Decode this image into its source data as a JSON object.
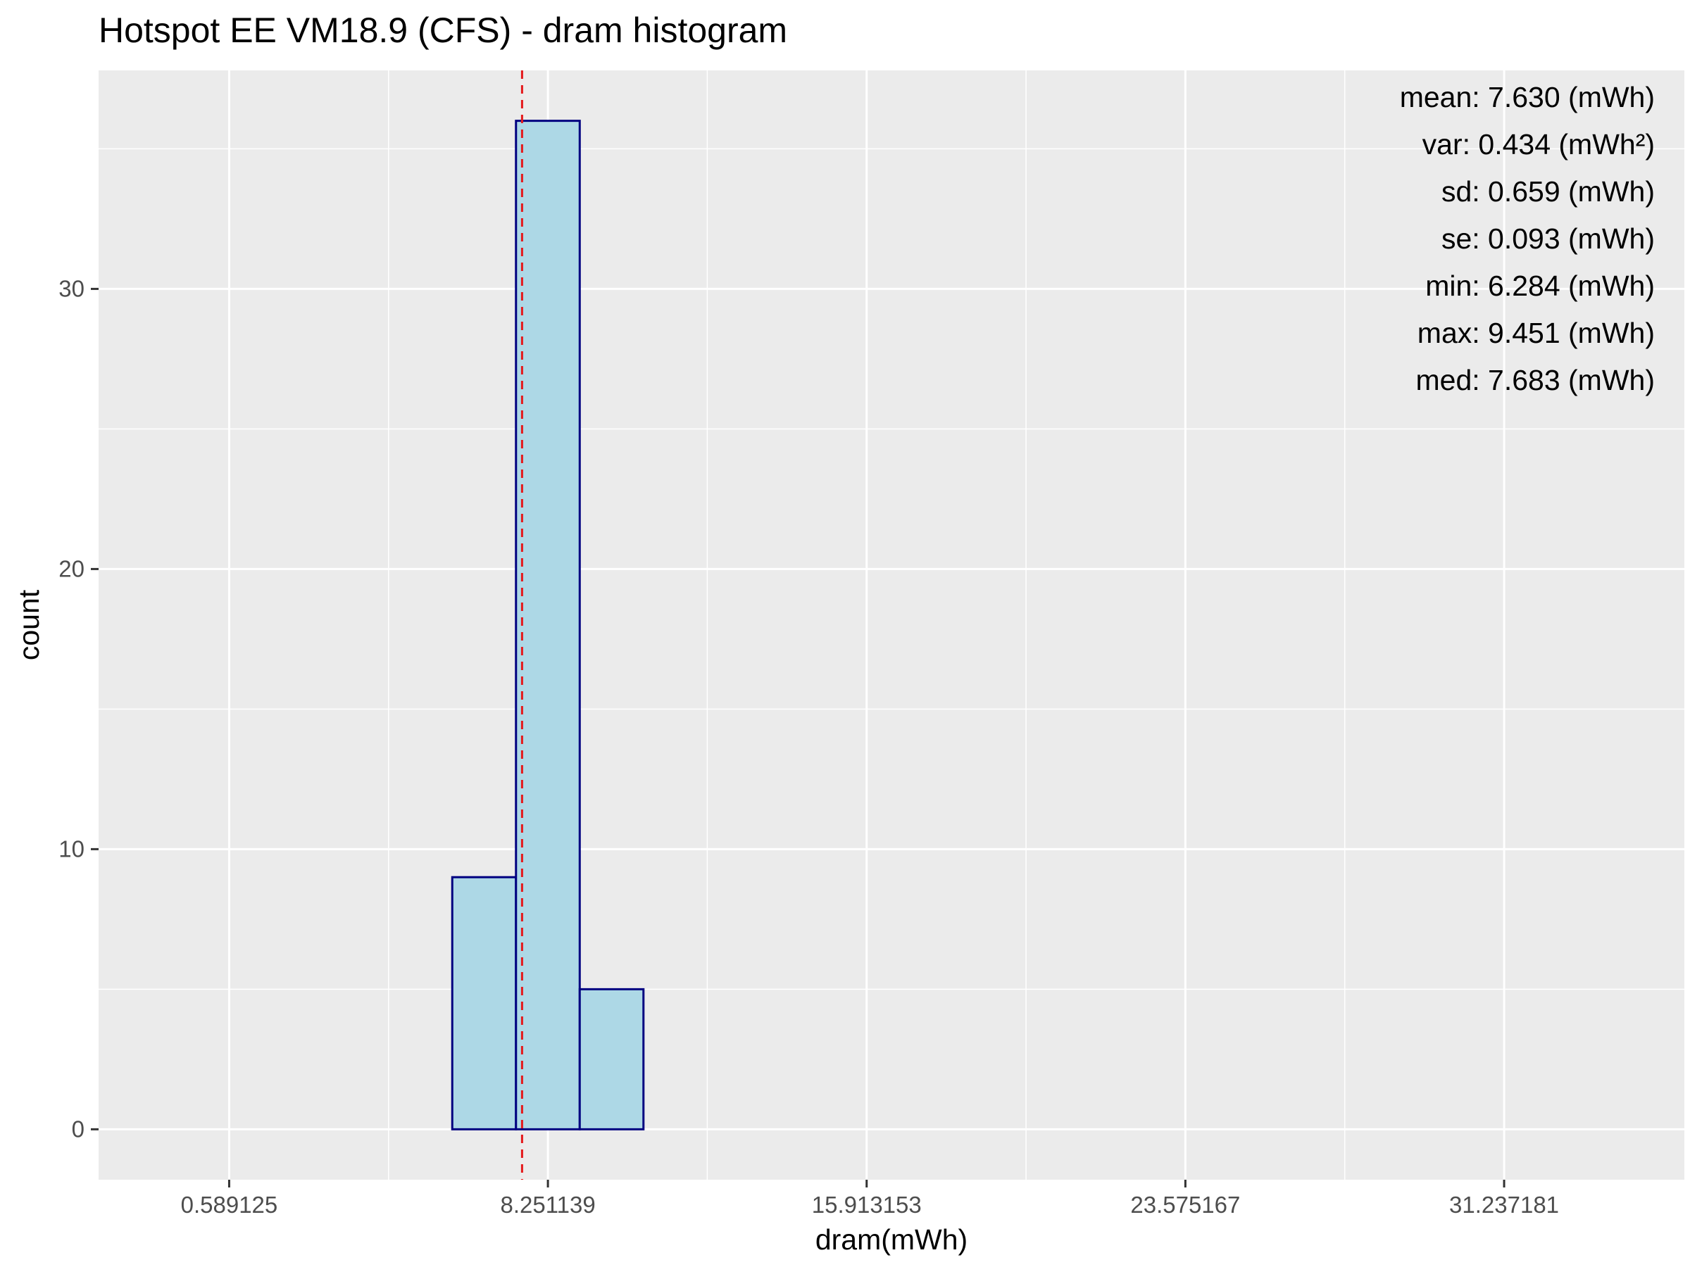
{
  "chart_data": {
    "type": "bar",
    "title": "Hotspot EE VM18.9 (CFS) - dram histogram",
    "xlabel": "dram(mWh)",
    "ylabel": "count",
    "x_ticks": [
      "0.589125",
      "8.251139",
      "15.913153",
      "23.575167",
      "31.237181"
    ],
    "x_tick_values": [
      0.589125,
      8.251139,
      15.913153,
      23.575167,
      31.237181
    ],
    "y_ticks": [
      0,
      10,
      20,
      30
    ],
    "xlim": [
      -2.55,
      35.57
    ],
    "ylim": [
      -1.8,
      37.8
    ],
    "bin_width": 1.532,
    "bins": [
      {
        "x0": -1.709,
        "x1": -0.177,
        "count": 0
      },
      {
        "x0": -0.177,
        "x1": 1.355,
        "count": 0
      },
      {
        "x0": 1.355,
        "x1": 2.887,
        "count": 0
      },
      {
        "x0": 2.887,
        "x1": 4.419,
        "count": 0
      },
      {
        "x0": 4.419,
        "x1": 5.952,
        "count": 0
      },
      {
        "x0": 5.952,
        "x1": 7.484,
        "count": 9
      },
      {
        "x0": 7.484,
        "x1": 9.016,
        "count": 36
      },
      {
        "x0": 9.016,
        "x1": 10.548,
        "count": 5
      },
      {
        "x0": 10.548,
        "x1": 12.081,
        "count": 0
      },
      {
        "x0": 12.081,
        "x1": 13.613,
        "count": 0
      },
      {
        "x0": 13.613,
        "x1": 15.145,
        "count": 0
      },
      {
        "x0": 15.145,
        "x1": 16.677,
        "count": 0
      },
      {
        "x0": 16.677,
        "x1": 18.21,
        "count": 0
      },
      {
        "x0": 18.21,
        "x1": 19.742,
        "count": 0
      },
      {
        "x0": 19.742,
        "x1": 21.274,
        "count": 0
      },
      {
        "x0": 21.274,
        "x1": 22.806,
        "count": 0
      },
      {
        "x0": 22.806,
        "x1": 24.339,
        "count": 0
      },
      {
        "x0": 24.339,
        "x1": 25.871,
        "count": 0
      },
      {
        "x0": 25.871,
        "x1": 27.403,
        "count": 0
      },
      {
        "x0": 27.403,
        "x1": 28.935,
        "count": 0
      },
      {
        "x0": 28.935,
        "x1": 30.468,
        "count": 0
      },
      {
        "x0": 30.468,
        "x1": 32.0,
        "count": 0
      },
      {
        "x0": 32.0,
        "x1": 33.532,
        "count": 0
      }
    ],
    "mean_line": 7.63,
    "grid": true,
    "colors": {
      "panel": "#ebebeb",
      "grid": "#ffffff",
      "bar_fill": "#add8e6",
      "bar_stroke": "#000080",
      "mean_line": "#e41a1c"
    },
    "annotations": [
      "mean: 7.630 (mWh)",
      "var: 0.434 (mWh²)",
      "sd: 0.659 (mWh)",
      "se: 0.093 (mWh)",
      "min: 6.284 (mWh)",
      "max: 9.451 (mWh)",
      "med: 7.683 (mWh)"
    ]
  }
}
